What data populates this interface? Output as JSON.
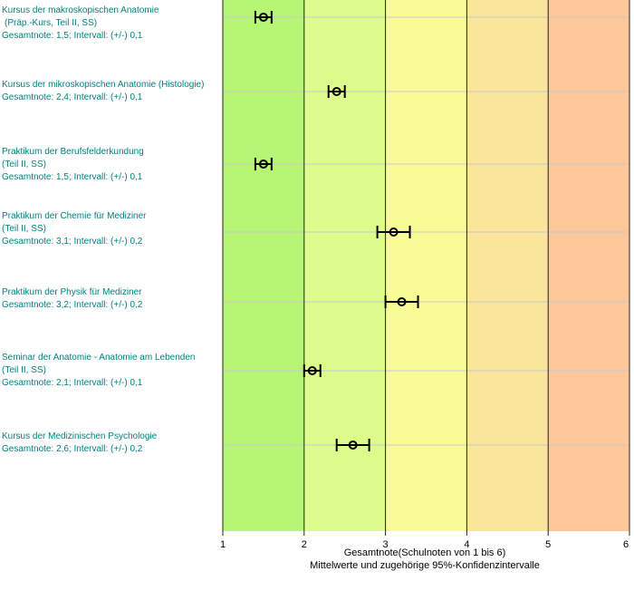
{
  "chart_data": {
    "type": "scatter",
    "subtype": "point estimates with 95% confidence intervals",
    "xlabel": "Gesamtnote(Schulnoten von 1 bis 6)",
    "xlabel2": "Mittelwerte und zugehörige 95%-Konfidenzintervalle",
    "xlim": [
      1,
      6
    ],
    "xticks": [
      "1",
      "2",
      "3",
      "4",
      "5",
      "6"
    ],
    "grid": true,
    "background_bands": [
      {
        "from": 1,
        "to": 2,
        "color": "#b7f574"
      },
      {
        "from": 2,
        "to": 3,
        "color": "#dcfc8c"
      },
      {
        "from": 3,
        "to": 4,
        "color": "#f9fc96"
      },
      {
        "from": 4,
        "to": 5,
        "color": "#fbe49c"
      },
      {
        "from": 5,
        "to": 6,
        "color": "#fdc79a"
      }
    ],
    "label_color": "#008080",
    "courses": [
      {
        "lines": [
          "Kursus der makroskopischen Anatomie",
          "(Präp.-Kurs, Teil II, SS)",
          "Gesamtnote: 1,5;  Intervall: (+/-) 0,1"
        ],
        "value": 1.5,
        "ci": 0.1
      },
      {
        "lines": [
          "Kursus der mikroskopischen Anatomie (Histologie)",
          "Gesamtnote: 2,4;  Intervall: (+/-) 0,1"
        ],
        "value": 2.4,
        "ci": 0.1
      },
      {
        "lines": [
          "Praktikum der Berufsfelderkundung",
          "(Teil II, SS)",
          "Gesamtnote: 1,5;  Intervall: (+/-) 0,1"
        ],
        "value": 1.5,
        "ci": 0.1
      },
      {
        "lines": [
          "Praktikum der Chemie für Mediziner",
          "(Teil II, SS)",
          "Gesamtnote: 3,1;  Intervall: (+/-) 0,2"
        ],
        "value": 3.1,
        "ci": 0.2
      },
      {
        "lines": [
          "Praktikum der Physik für Mediziner",
          "Gesamtnote: 3,2;  Intervall: (+/-) 0,2"
        ],
        "value": 3.2,
        "ci": 0.2
      },
      {
        "lines": [
          "Seminar der Anatomie - Anatomie am Lebenden",
          "(Teil II, SS)",
          "Gesamtnote: 2,1;  Intervall: (+/-) 0,1"
        ],
        "value": 2.1,
        "ci": 0.1
      },
      {
        "lines": [
          "Kursus der Medizinischen Psychologie",
          "Gesamtnote: 2,6;  Intervall: (+/-) 0,2"
        ],
        "value": 2.6,
        "ci": 0.2
      }
    ]
  }
}
